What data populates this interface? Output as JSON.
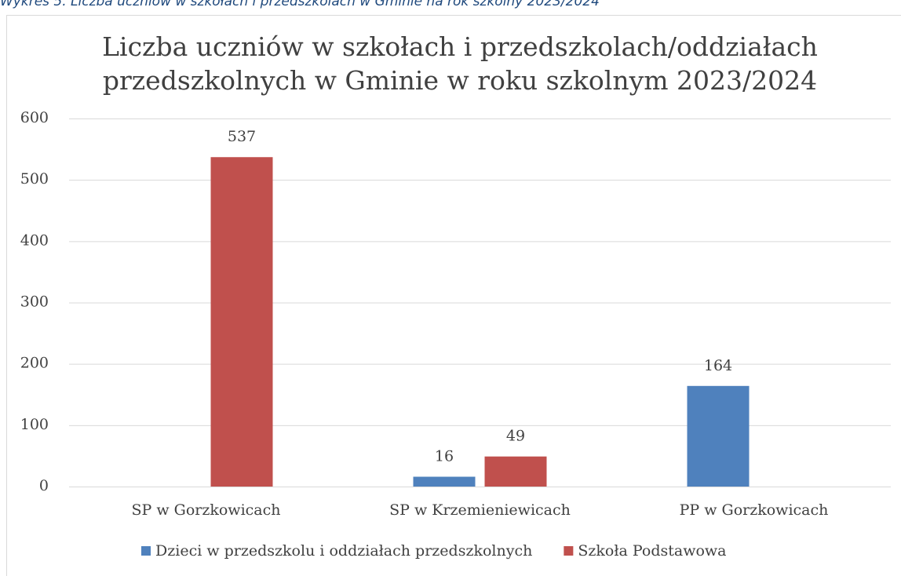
{
  "caption": "Wykres 5. Liczba uczniów w szkołach i przedszkolach w Gminie na rok szkolny 2023/2024",
  "chart_data": {
    "type": "bar",
    "title": [
      "Liczba uczniów w szkołach i przedszkolach/oddziałach",
      "przedszkolnych w Gminie w roku szkolnym 2023/2024"
    ],
    "categories": [
      "SP w Gorzkowicach",
      "SP w Krzemieniewicach",
      "PP w Gorzkowicach"
    ],
    "series": [
      {
        "name": "Dzieci w przedszkolu i oddziałach przedszkolnych",
        "color": "#4f81bd",
        "values": [
          null,
          16,
          164
        ]
      },
      {
        "name": "Szkoła Podstawowa",
        "color": "#c0504d",
        "values": [
          537,
          49,
          null
        ]
      }
    ],
    "ylim": [
      0,
      600
    ],
    "yticks": [
      0,
      100,
      200,
      300,
      400,
      500,
      600
    ],
    "grid": true,
    "legend": "bottom"
  }
}
